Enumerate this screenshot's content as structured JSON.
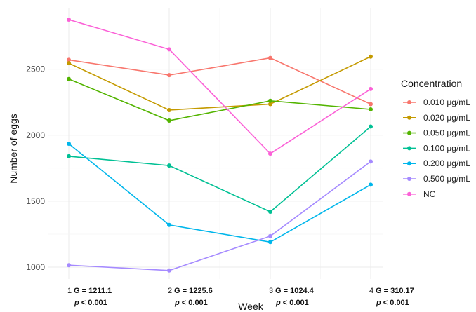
{
  "chart_data": {
    "type": "line",
    "title": "",
    "xlabel": "Week",
    "ylabel": "Number of eggs",
    "x": [
      1,
      2,
      3,
      4
    ],
    "xlim": [
      1,
      4
    ],
    "ylim": [
      910,
      2960
    ],
    "yticks": [
      1000,
      1500,
      2000,
      2500
    ],
    "grid": true,
    "legend": {
      "title": "Concentration",
      "position": "right"
    },
    "series": [
      {
        "name": "0.010 μg/mL",
        "color": "#F8766D",
        "values": [
          2570,
          2455,
          2585,
          2235
        ]
      },
      {
        "name": "0.020 μg/mL",
        "color": "#C49A00",
        "values": [
          2545,
          2190,
          2235,
          2595
        ]
      },
      {
        "name": "0.050 μg/mL",
        "color": "#53B400",
        "values": [
          2425,
          2110,
          2260,
          2195
        ]
      },
      {
        "name": "0.100 μg/mL",
        "color": "#00C094",
        "values": [
          1840,
          1770,
          1420,
          2065
        ]
      },
      {
        "name": "0.200 μg/mL",
        "color": "#00B6EB",
        "values": [
          1935,
          1320,
          1190,
          1625
        ]
      },
      {
        "name": "0.500 μg/mL",
        "color": "#A58AFF",
        "values": [
          1015,
          975,
          1235,
          1800
        ]
      },
      {
        "name": "NC",
        "color": "#FB61D7",
        "values": [
          2875,
          2650,
          1860,
          2350
        ]
      }
    ],
    "x_annotations": [
      {
        "week": "1",
        "g": "G = 1211.1",
        "p": "p < 0.001"
      },
      {
        "week": "2",
        "g": "G = 1225.6",
        "p": "p < 0.001"
      },
      {
        "week": "3",
        "g": "G = 1024.4",
        "p": "p < 0.001"
      },
      {
        "week": "4",
        "g": "G = 310.17",
        "p": "p < 0.001"
      }
    ]
  }
}
